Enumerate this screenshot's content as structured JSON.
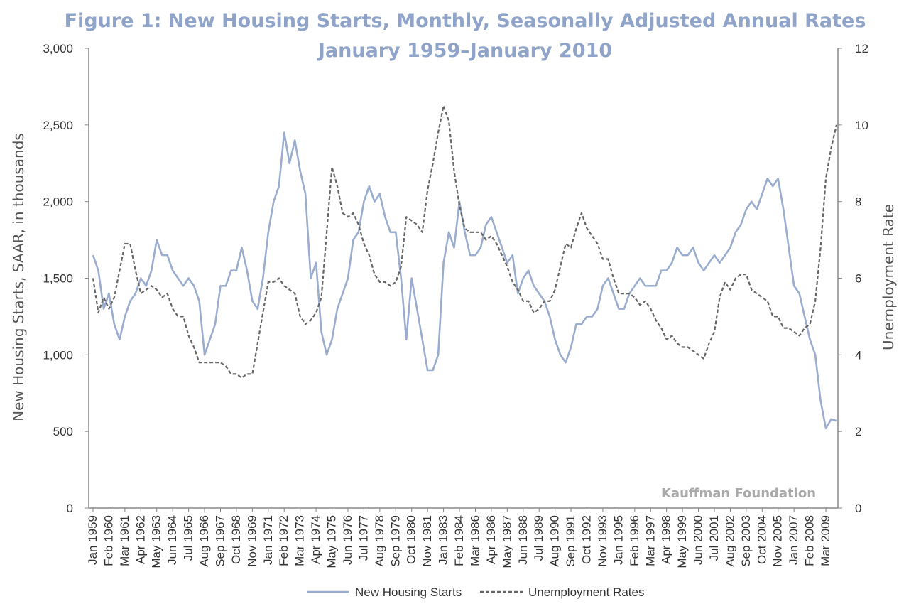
{
  "chart_data": {
    "type": "line",
    "title": "Figure 1: New Housing Starts, Monthly, Seasonally Adjusted Annual Rates",
    "subtitle": "January 1959–January 2010",
    "y_label": "New Housing Starts, SAAR, in thousands",
    "y2_label": "Unemployment Rate",
    "annotation": "Kauffman Foundation",
    "categories": [
      "Jan 1959",
      null,
      null,
      "Feb 1960",
      null,
      null,
      "Mar 1961",
      null,
      null,
      "Apr 1962",
      null,
      null,
      "May 1963",
      null,
      null,
      "Jun 1964",
      null,
      null,
      "Jul 1965",
      null,
      null,
      "Aug 1966",
      null,
      null,
      "Sep 1967",
      null,
      null,
      "Oct 1968",
      null,
      null,
      "Nov 1969",
      null,
      null,
      "Jan 1971",
      null,
      null,
      "Feb 1972",
      null,
      null,
      "Mar 1973",
      null,
      null,
      "Apr 1974",
      null,
      null,
      "May 1975",
      null,
      null,
      "Jun 1976",
      null,
      null,
      "Jul 1977",
      null,
      null,
      "Aug 1978",
      null,
      null,
      "Sep 1979",
      null,
      null,
      "Oct 1980",
      null,
      null,
      "Nov 1981",
      null,
      null,
      "Jan 1983",
      null,
      null,
      "Feb 1984",
      null,
      null,
      "Mar 1986",
      null,
      null,
      "Apr 1986",
      null,
      null,
      "May 1987",
      null,
      null,
      "Jun 1988",
      null,
      null,
      "Jul 1989",
      null,
      null,
      "Aug 1990",
      null,
      null,
      "Sep 1991",
      null,
      null,
      "Oct 1992",
      null,
      null,
      "Nov 1993",
      null,
      null,
      "Jan 1995",
      null,
      null,
      "Feb 1996",
      null,
      null,
      "Mar 1997",
      null,
      null,
      "Apr 1998",
      null,
      null,
      "May 1999",
      null,
      null,
      "Jun 2000",
      null,
      null,
      "Jul 2001",
      null,
      null,
      "Aug 2002",
      null,
      null,
      "Sep 2003",
      null,
      null,
      "Oct 2004",
      null,
      null,
      "Nov 2005",
      null,
      null,
      "Jan 2007",
      null,
      null,
      "Feb 2008",
      null,
      null,
      "Mar 2009",
      null,
      null
    ],
    "series": [
      {
        "name": "New Housing Starts",
        "color": "#9aadcf",
        "dash": false,
        "values": [
          1650,
          1550,
          1300,
          1400,
          1200,
          1100,
          1250,
          1350,
          1400,
          1500,
          1450,
          1550,
          1750,
          1650,
          1650,
          1550,
          1500,
          1450,
          1500,
          1450,
          1350,
          1000,
          1100,
          1200,
          1450,
          1450,
          1550,
          1550,
          1700,
          1550,
          1350,
          1300,
          1500,
          1800,
          2000,
          2100,
          2450,
          2250,
          2400,
          2200,
          2050,
          1500,
          1600,
          1150,
          1000,
          1100,
          1300,
          1400,
          1500,
          1750,
          1800,
          2000,
          2100,
          2000,
          2050,
          1900,
          1800,
          1800,
          1500,
          1100,
          1500,
          1300,
          1100,
          900,
          900,
          1000,
          1600,
          1800,
          1700,
          2000,
          1800,
          1650,
          1650,
          1700,
          1850,
          1900,
          1800,
          1700,
          1600,
          1650,
          1400,
          1500,
          1550,
          1450,
          1400,
          1350,
          1250,
          1100,
          1000,
          950,
          1050,
          1200,
          1200,
          1250,
          1250,
          1300,
          1450,
          1500,
          1400,
          1300,
          1300,
          1400,
          1450,
          1500,
          1450,
          1450,
          1450,
          1550,
          1550,
          1600,
          1700,
          1650,
          1650,
          1700,
          1600,
          1550,
          1600,
          1650,
          1600,
          1650,
          1700,
          1800,
          1850,
          1950,
          2000,
          1950,
          2050,
          2150,
          2100,
          2150,
          1950,
          1700,
          1450,
          1400,
          1250,
          1100,
          1000,
          700,
          520,
          580,
          570
        ]
      },
      {
        "name": "Unemployment Rates",
        "color": "#666666",
        "dash": true,
        "axis": "y2",
        "values": [
          6.0,
          5.1,
          5.5,
          5.2,
          5.5,
          6.2,
          6.9,
          6.9,
          6.2,
          5.6,
          5.7,
          5.8,
          5.7,
          5.5,
          5.6,
          5.2,
          5.0,
          5.0,
          4.5,
          4.2,
          3.8,
          3.8,
          3.8,
          3.8,
          3.8,
          3.7,
          3.5,
          3.5,
          3.4,
          3.5,
          3.5,
          4.3,
          5.1,
          5.9,
          5.9,
          6.0,
          5.8,
          5.7,
          5.6,
          5.0,
          4.8,
          4.9,
          5.1,
          5.5,
          7.2,
          8.9,
          8.4,
          7.7,
          7.6,
          7.7,
          7.4,
          6.9,
          6.6,
          6.1,
          5.9,
          5.9,
          5.8,
          5.9,
          6.3,
          7.6,
          7.5,
          7.4,
          7.2,
          8.3,
          9.0,
          9.8,
          10.5,
          10.1,
          8.8,
          7.9,
          7.3,
          7.2,
          7.2,
          7.2,
          7.0,
          7.1,
          6.9,
          6.6,
          6.3,
          5.9,
          5.7,
          5.4,
          5.4,
          5.1,
          5.2,
          5.4,
          5.4,
          5.7,
          6.3,
          6.9,
          6.8,
          7.3,
          7.7,
          7.3,
          7.1,
          6.9,
          6.5,
          6.5,
          6.0,
          5.6,
          5.6,
          5.6,
          5.5,
          5.3,
          5.4,
          5.2,
          4.9,
          4.7,
          4.4,
          4.5,
          4.3,
          4.2,
          4.2,
          4.1,
          4.0,
          3.9,
          4.3,
          4.6,
          5.5,
          5.9,
          5.7,
          6.0,
          6.1,
          6.1,
          5.7,
          5.6,
          5.5,
          5.4,
          5.0,
          5.0,
          4.7,
          4.7,
          4.6,
          4.5,
          4.7,
          4.8,
          5.4,
          6.8,
          8.6,
          9.4,
          10.0
        ]
      }
    ],
    "ylim": [
      0,
      3000
    ],
    "yticks": [
      0,
      500,
      {
        "value": 1000,
        "label": "1,000"
      },
      {
        "value": 1500,
        "label": "1,500"
      },
      {
        "value": 2000,
        "label": "2,000"
      },
      {
        "value": 2500,
        "label": "2,500"
      },
      {
        "value": 3000,
        "label": "3,000"
      }
    ],
    "y2lim": [
      0,
      12
    ],
    "y2ticks": [
      0,
      2,
      4,
      6,
      8,
      10,
      12
    ],
    "legend": "bottom"
  }
}
